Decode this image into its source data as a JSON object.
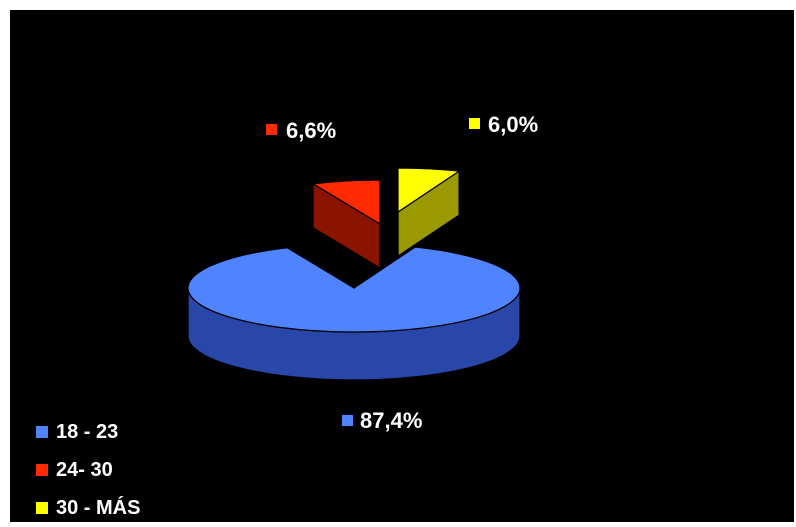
{
  "chart_data": {
    "type": "pie",
    "style": "3d-exploded",
    "categories": [
      "18 - 23",
      "24- 30",
      "30 - MÁS"
    ],
    "values": [
      87.4,
      6.6,
      6.0
    ],
    "data_labels": [
      "87,4%",
      "6,6%",
      "6,0%"
    ],
    "colors": [
      "#4f83ff",
      "#ff2a00",
      "#ffff00"
    ],
    "side_colors": [
      "#2847a8",
      "#8a1400",
      "#9a9a00"
    ],
    "legend_position": "bottom-left",
    "title": "",
    "background": "#000000"
  }
}
